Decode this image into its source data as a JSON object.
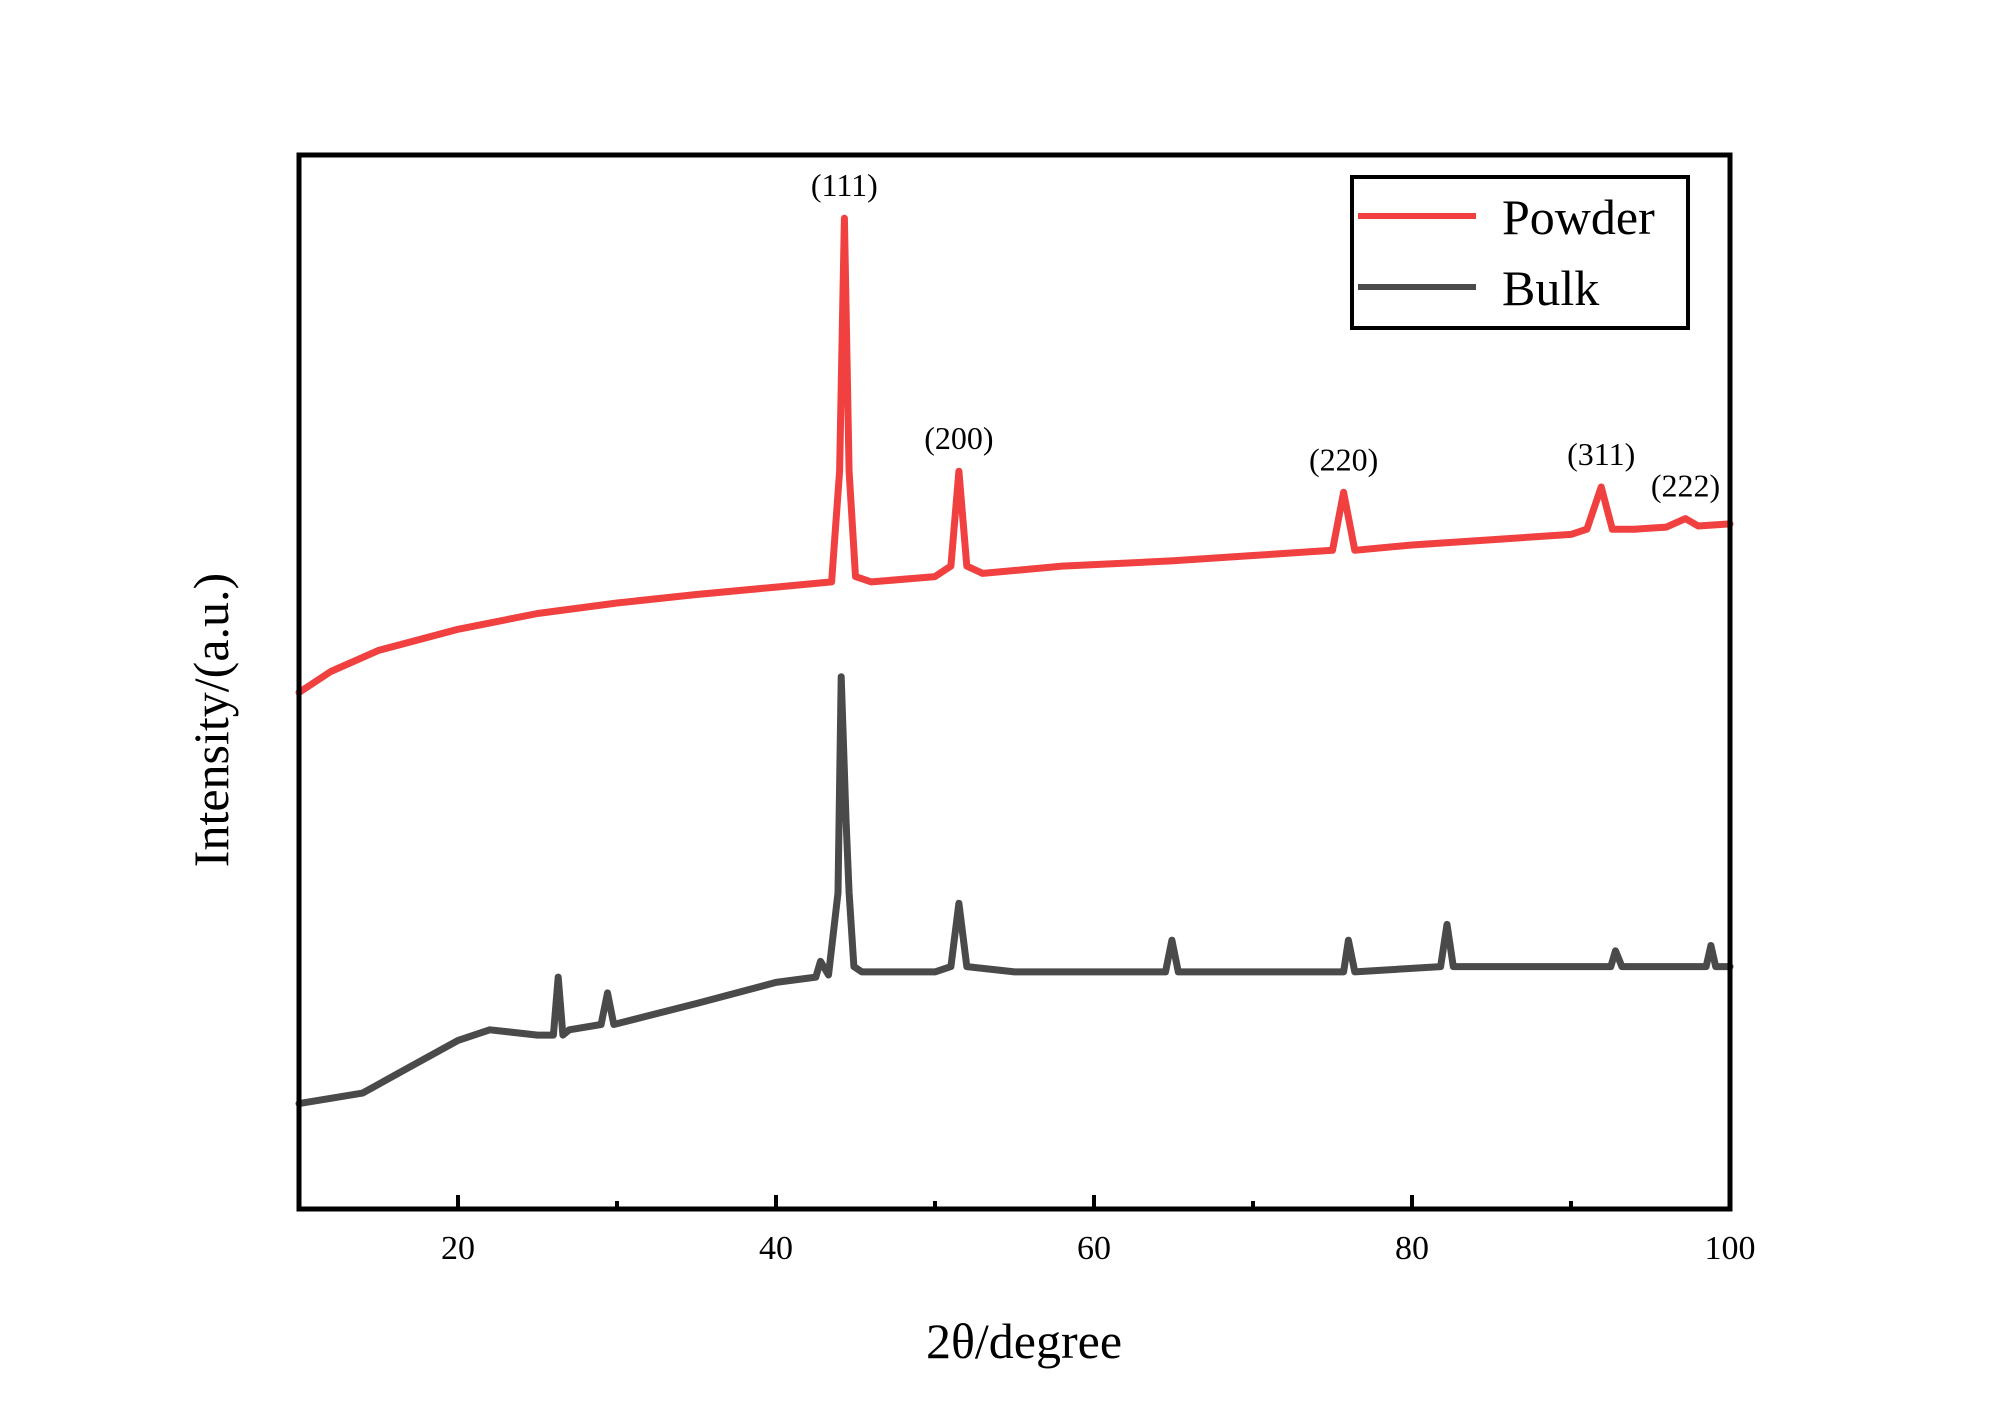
{
  "chart_data": {
    "type": "line",
    "title": "",
    "xlabel": "2θ/degree",
    "ylabel": "Intensity/(a.u.)",
    "xlim": [
      10,
      100
    ],
    "ylim": [
      0,
      100
    ],
    "x_ticks": [
      20,
      40,
      60,
      80,
      100
    ],
    "x_tick_labels": [
      "20",
      "40",
      "60",
      "80",
      "100"
    ],
    "grid": false,
    "legend_position": "top-right",
    "series": [
      {
        "name": "Powder",
        "color": "#f04040",
        "x": [
          10,
          12,
          15,
          20,
          25,
          30,
          35,
          40,
          43.5,
          44.0,
          44.3,
          44.6,
          45.0,
          46,
          50,
          51.0,
          51.5,
          52.0,
          53,
          58,
          65,
          70,
          75.0,
          75.7,
          76.4,
          80,
          85,
          90,
          91.0,
          91.9,
          92.6,
          94,
          96,
          97.2,
          98,
          100
        ],
        "values": [
          49,
          51,
          53,
          55,
          56.5,
          57.5,
          58.3,
          59,
          59.5,
          70,
          94,
          70,
          60,
          59.5,
          60,
          61,
          70,
          61,
          60.3,
          61,
          61.5,
          62,
          62.5,
          68,
          62.5,
          63,
          63.5,
          64,
          64.5,
          68.5,
          64.5,
          64.5,
          64.7,
          65.5,
          64.8,
          65
        ]
      },
      {
        "name": "Bulk",
        "color": "#4a4a4a",
        "x": [
          10,
          14,
          17,
          20,
          22,
          25,
          26.0,
          26.3,
          26.6,
          27,
          29.0,
          29.4,
          29.8,
          35,
          40,
          42.5,
          42.8,
          43.3,
          43.9,
          44.1,
          44.4,
          44.6,
          44.9,
          45.4,
          47,
          50,
          51.0,
          51.5,
          52.0,
          55,
          64.5,
          64.9,
          65.3,
          70,
          75.7,
          76.0,
          76.4,
          81.8,
          82.2,
          82.6,
          90,
          92.5,
          92.8,
          93.2,
          98.5,
          98.8,
          99.1,
          100
        ],
        "values": [
          10,
          11,
          13.5,
          16,
          17,
          16.5,
          16.5,
          22,
          16.5,
          17,
          17.5,
          20.5,
          17.5,
          19.5,
          21.5,
          22,
          23.5,
          22.2,
          30,
          50.5,
          37,
          30,
          23,
          22.5,
          22.5,
          22.5,
          23,
          29,
          23,
          22.5,
          22.5,
          25.5,
          22.5,
          22.5,
          22.5,
          25.5,
          22.5,
          23,
          27,
          23,
          23,
          23,
          24.5,
          23,
          23,
          25,
          23,
          23
        ]
      }
    ],
    "annotations": [
      {
        "text": "(111)",
        "x": 44.3,
        "y": 94
      },
      {
        "text": "(200)",
        "x": 51.5,
        "y": 70
      },
      {
        "text": "(220)",
        "x": 75.7,
        "y": 68
      },
      {
        "text": "(311)",
        "x": 91.9,
        "y": 68.5
      },
      {
        "text": "(222)",
        "x": 97.2,
        "y": 65.5
      }
    ]
  }
}
